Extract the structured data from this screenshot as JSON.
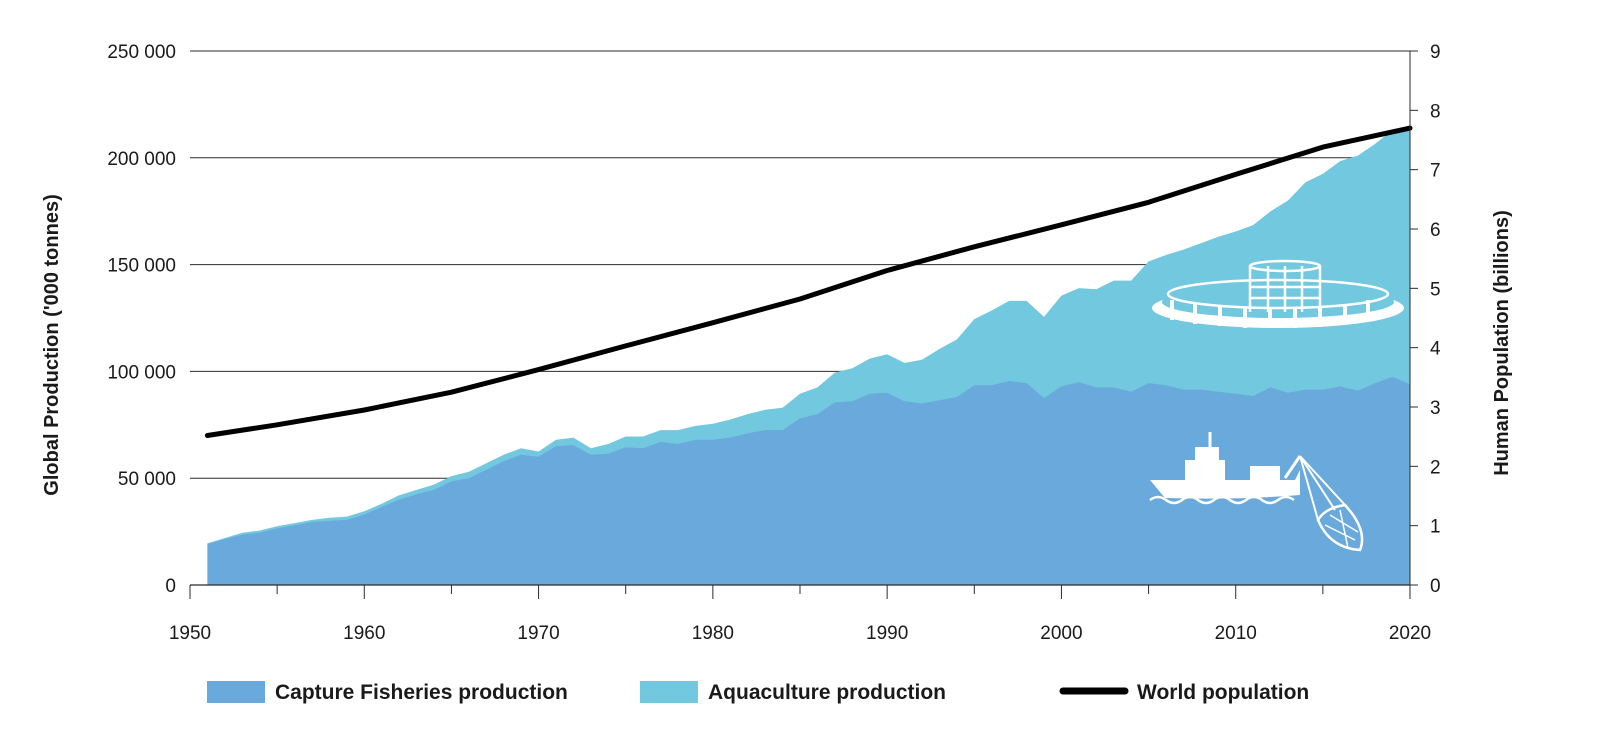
{
  "chart_data": {
    "type": "area",
    "title": "",
    "xlabel": "",
    "ylabel": "Global Production ('000 tonnes)",
    "y2label": "Human Population (billions)",
    "xlim": [
      1950,
      2020
    ],
    "ylim": [
      0,
      250000
    ],
    "y2lim": [
      0,
      9
    ],
    "x_ticks": [
      "1950",
      "1960",
      "1970",
      "1980",
      "1990",
      "2000",
      "2010",
      "2020"
    ],
    "y_ticks": [
      "0",
      "50 000",
      "100 000",
      "150 000",
      "200 000",
      "250 000"
    ],
    "y2_ticks": [
      "0",
      "1",
      "2",
      "3",
      "4",
      "5",
      "6",
      "7",
      "8",
      "9"
    ],
    "grid": true,
    "legend_position": "bottom",
    "x": [
      1951,
      1952,
      1953,
      1954,
      1955,
      1956,
      1957,
      1958,
      1959,
      1960,
      1961,
      1962,
      1963,
      1964,
      1965,
      1966,
      1967,
      1968,
      1969,
      1970,
      1971,
      1972,
      1973,
      1974,
      1975,
      1976,
      1977,
      1978,
      1979,
      1980,
      1981,
      1982,
      1983,
      1984,
      1985,
      1986,
      1987,
      1988,
      1989,
      1990,
      1991,
      1992,
      1993,
      1994,
      1995,
      1996,
      1997,
      1998,
      1999,
      2000,
      2001,
      2002,
      2003,
      2004,
      2005,
      2006,
      2007,
      2008,
      2009,
      2010,
      2011,
      2012,
      2013,
      2014,
      2015,
      2016,
      2017,
      2018,
      2019,
      2020
    ],
    "series": [
      {
        "name": "Capture Fisheries production",
        "kind": "area",
        "axis": "left",
        "color": "#6aa9dc",
        "values": [
          19000,
          21500,
          23500,
          24500,
          26500,
          28000,
          29500,
          30000,
          30500,
          33000,
          36500,
          40000,
          42500,
          44500,
          48500,
          50000,
          54000,
          58000,
          61000,
          60000,
          65000,
          65500,
          61000,
          61500,
          64500,
          64000,
          67000,
          66000,
          68000,
          68000,
          69000,
          71000,
          72500,
          72500,
          78000,
          80000,
          85500,
          86000,
          89500,
          90000,
          86000,
          85000,
          86500,
          88000,
          93500,
          93500,
          95500,
          94500,
          87500,
          93000,
          95000,
          92500,
          92500,
          90500,
          94500,
          93500,
          91500,
          91500,
          90500,
          89500,
          88500,
          92500,
          90000,
          91500,
          91500,
          93000,
          91000,
          94500,
          97500,
          94000
        ]
      },
      {
        "name": "Aquaculture production",
        "kind": "area",
        "axis": "left",
        "color": "#72c8de",
        "values": [
          19500,
          22000,
          24500,
          25500,
          27500,
          29000,
          30500,
          31500,
          32000,
          34500,
          38000,
          42000,
          44500,
          47000,
          51000,
          53000,
          57000,
          61000,
          64000,
          62500,
          68000,
          69000,
          64000,
          66000,
          69500,
          69500,
          72500,
          72500,
          74500,
          75500,
          77500,
          80000,
          82000,
          83000,
          89500,
          92500,
          99500,
          101500,
          106000,
          108000,
          104000,
          105500,
          110500,
          115000,
          124500,
          128500,
          133000,
          133000,
          125500,
          135500,
          139000,
          138500,
          142500,
          142500,
          151500,
          154500,
          157000,
          160000,
          163000,
          165500,
          168500,
          175000,
          180000,
          188500,
          192500,
          198500,
          201000,
          206500,
          213000,
          213500
        ]
      },
      {
        "name": "World population",
        "kind": "line",
        "axis": "right",
        "color": "#000000",
        "x": [
          1951,
          1955,
          1960,
          1965,
          1970,
          1975,
          1980,
          1985,
          1990,
          1995,
          2000,
          2005,
          2010,
          2015,
          2020
        ],
        "values": [
          2.52,
          2.7,
          2.95,
          3.25,
          3.63,
          4.03,
          4.42,
          4.82,
          5.3,
          5.7,
          6.07,
          6.45,
          6.92,
          7.38,
          7.7
        ]
      }
    ],
    "legend": [
      {
        "label": "Capture Fisheries production",
        "swatch": "box",
        "color": "#6aa9dc"
      },
      {
        "label": "Aquaculture production",
        "swatch": "box",
        "color": "#72c8de"
      },
      {
        "label": "World population",
        "swatch": "line",
        "color": "#000000"
      }
    ],
    "illustrations": [
      "fish-farm-cage-icon",
      "fishing-trawler-icon"
    ]
  }
}
